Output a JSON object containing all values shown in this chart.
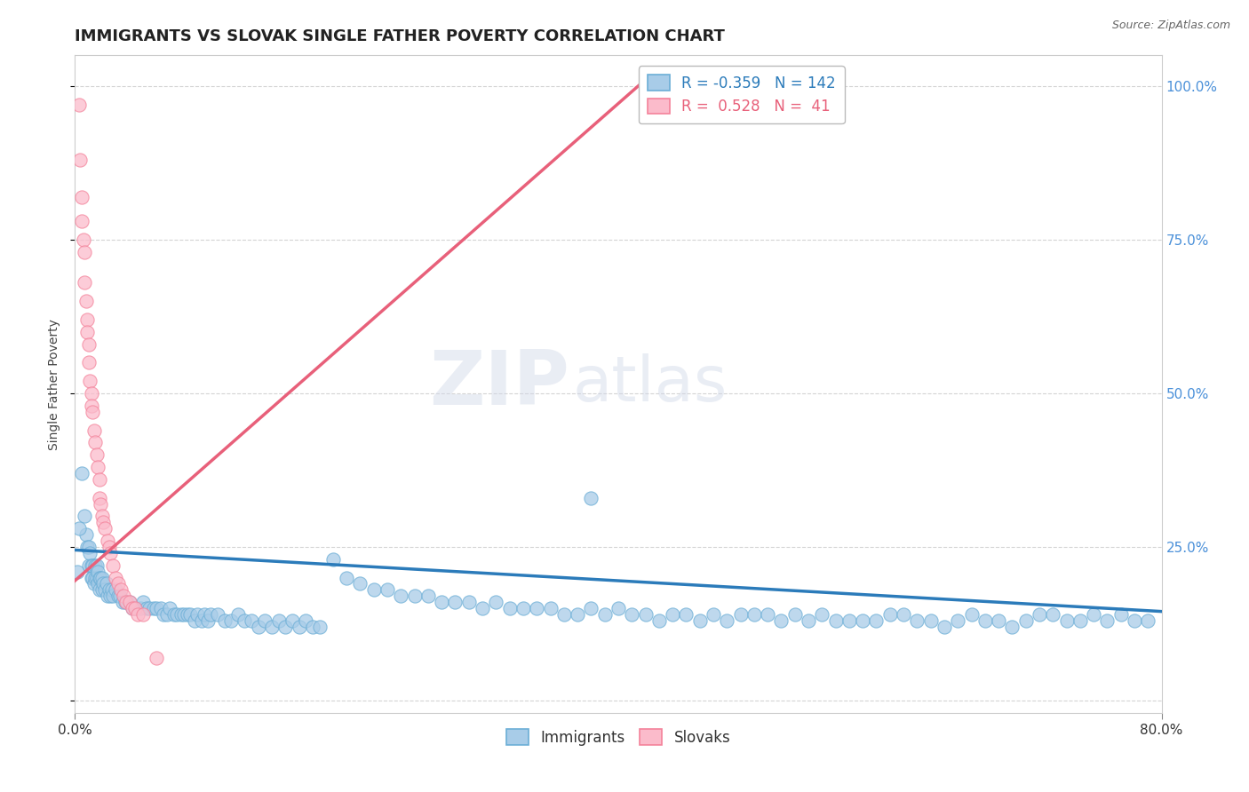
{
  "title": "IMMIGRANTS VS SLOVAK SINGLE FATHER POVERTY CORRELATION CHART",
  "source_text": "Source: ZipAtlas.com",
  "ylabel": "Single Father Poverty",
  "watermark_zip": "ZIP",
  "watermark_atlas": "atlas",
  "xlim": [
    0.0,
    0.8
  ],
  "ylim": [
    -0.02,
    1.05
  ],
  "x_ticks": [
    0.0,
    0.8
  ],
  "x_tick_labels": [
    "0.0%",
    "80.0%"
  ],
  "y_ticks_right": [
    0.25,
    0.5,
    0.75,
    1.0
  ],
  "y_tick_labels_right": [
    "25.0%",
    "50.0%",
    "75.0%",
    "100.0%"
  ],
  "blue_scatter_x": [
    0.005,
    0.007,
    0.008,
    0.009,
    0.01,
    0.01,
    0.011,
    0.012,
    0.012,
    0.013,
    0.013,
    0.014,
    0.015,
    0.015,
    0.016,
    0.016,
    0.017,
    0.017,
    0.018,
    0.018,
    0.019,
    0.02,
    0.02,
    0.021,
    0.022,
    0.023,
    0.024,
    0.025,
    0.026,
    0.027,
    0.028,
    0.03,
    0.032,
    0.033,
    0.035,
    0.037,
    0.04,
    0.042,
    0.045,
    0.048,
    0.05,
    0.053,
    0.055,
    0.058,
    0.06,
    0.063,
    0.065,
    0.068,
    0.07,
    0.073,
    0.075,
    0.078,
    0.08,
    0.083,
    0.085,
    0.088,
    0.09,
    0.093,
    0.095,
    0.098,
    0.1,
    0.105,
    0.11,
    0.115,
    0.12,
    0.125,
    0.13,
    0.135,
    0.14,
    0.145,
    0.15,
    0.155,
    0.16,
    0.165,
    0.17,
    0.175,
    0.18,
    0.19,
    0.2,
    0.21,
    0.22,
    0.23,
    0.24,
    0.25,
    0.26,
    0.27,
    0.28,
    0.29,
    0.3,
    0.31,
    0.32,
    0.33,
    0.34,
    0.35,
    0.36,
    0.37,
    0.38,
    0.39,
    0.4,
    0.41,
    0.42,
    0.43,
    0.44,
    0.45,
    0.46,
    0.47,
    0.48,
    0.49,
    0.5,
    0.51,
    0.52,
    0.53,
    0.54,
    0.55,
    0.56,
    0.57,
    0.58,
    0.59,
    0.6,
    0.61,
    0.62,
    0.63,
    0.64,
    0.65,
    0.66,
    0.67,
    0.68,
    0.69,
    0.7,
    0.71,
    0.72,
    0.73,
    0.74,
    0.75,
    0.76,
    0.77,
    0.78,
    0.79,
    0.003,
    0.38,
    0.002
  ],
  "blue_scatter_y": [
    0.37,
    0.3,
    0.27,
    0.25,
    0.25,
    0.22,
    0.24,
    0.22,
    0.2,
    0.22,
    0.2,
    0.19,
    0.22,
    0.2,
    0.22,
    0.2,
    0.21,
    0.19,
    0.2,
    0.18,
    0.2,
    0.2,
    0.18,
    0.19,
    0.18,
    0.19,
    0.17,
    0.18,
    0.17,
    0.18,
    0.17,
    0.18,
    0.17,
    0.17,
    0.16,
    0.16,
    0.16,
    0.15,
    0.15,
    0.15,
    0.16,
    0.15,
    0.15,
    0.15,
    0.15,
    0.15,
    0.14,
    0.14,
    0.15,
    0.14,
    0.14,
    0.14,
    0.14,
    0.14,
    0.14,
    0.13,
    0.14,
    0.13,
    0.14,
    0.13,
    0.14,
    0.14,
    0.13,
    0.13,
    0.14,
    0.13,
    0.13,
    0.12,
    0.13,
    0.12,
    0.13,
    0.12,
    0.13,
    0.12,
    0.13,
    0.12,
    0.12,
    0.23,
    0.2,
    0.19,
    0.18,
    0.18,
    0.17,
    0.17,
    0.17,
    0.16,
    0.16,
    0.16,
    0.15,
    0.16,
    0.15,
    0.15,
    0.15,
    0.15,
    0.14,
    0.14,
    0.15,
    0.14,
    0.15,
    0.14,
    0.14,
    0.13,
    0.14,
    0.14,
    0.13,
    0.14,
    0.13,
    0.14,
    0.14,
    0.14,
    0.13,
    0.14,
    0.13,
    0.14,
    0.13,
    0.13,
    0.13,
    0.13,
    0.14,
    0.14,
    0.13,
    0.13,
    0.12,
    0.13,
    0.14,
    0.13,
    0.13,
    0.12,
    0.13,
    0.14,
    0.14,
    0.13,
    0.13,
    0.14,
    0.13,
    0.14,
    0.13,
    0.13,
    0.28,
    0.33,
    0.21
  ],
  "pink_scatter_x": [
    0.003,
    0.004,
    0.005,
    0.005,
    0.006,
    0.007,
    0.007,
    0.008,
    0.009,
    0.009,
    0.01,
    0.01,
    0.011,
    0.012,
    0.012,
    0.013,
    0.014,
    0.015,
    0.016,
    0.017,
    0.018,
    0.018,
    0.019,
    0.02,
    0.021,
    0.022,
    0.024,
    0.025,
    0.026,
    0.028,
    0.03,
    0.032,
    0.034,
    0.036,
    0.038,
    0.04,
    0.042,
    0.044,
    0.046,
    0.05,
    0.06
  ],
  "pink_scatter_y": [
    0.97,
    0.88,
    0.82,
    0.78,
    0.75,
    0.73,
    0.68,
    0.65,
    0.62,
    0.6,
    0.58,
    0.55,
    0.52,
    0.5,
    0.48,
    0.47,
    0.44,
    0.42,
    0.4,
    0.38,
    0.36,
    0.33,
    0.32,
    0.3,
    0.29,
    0.28,
    0.26,
    0.25,
    0.24,
    0.22,
    0.2,
    0.19,
    0.18,
    0.17,
    0.16,
    0.16,
    0.15,
    0.15,
    0.14,
    0.14,
    0.07
  ],
  "blue_trend_x": [
    0.0,
    0.8
  ],
  "blue_trend_y": [
    0.245,
    0.145
  ],
  "pink_trend_x": [
    0.0,
    0.43
  ],
  "pink_trend_y": [
    0.195,
    1.03
  ],
  "blue_dot_color": "#a8cce8",
  "blue_dot_edge": "#6baed6",
  "pink_dot_color": "#fbbbcb",
  "pink_dot_edge": "#f4829a",
  "blue_line_color": "#2b7bba",
  "pink_line_color": "#e8607a",
  "grid_color": "#d0d0d0",
  "right_tick_color": "#4a90d9",
  "background_color": "#ffffff",
  "title_fontsize": 13,
  "ylabel_fontsize": 10
}
